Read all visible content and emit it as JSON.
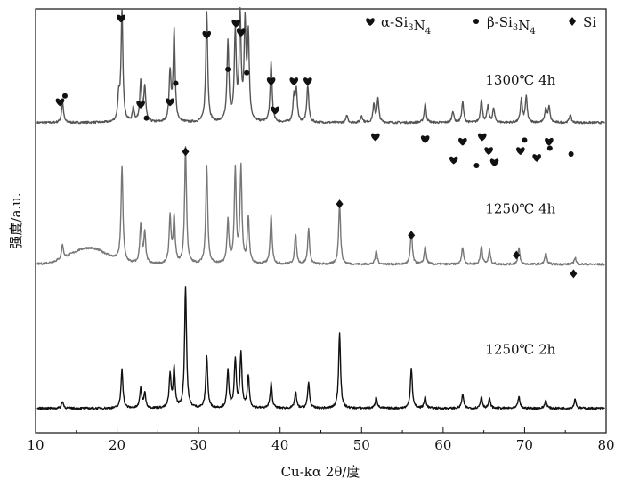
{
  "chart_data": {
    "type": "line",
    "xlabel": "Cu-kα 2θ/度",
    "ylabel": "强度/a.u.",
    "xlim": [
      10,
      80
    ],
    "xticks": [
      10,
      20,
      30,
      40,
      50,
      60,
      70,
      80
    ],
    "legend": {
      "placement": "top-right",
      "entries": [
        {
          "symbol": "heart",
          "pre": "α-Si",
          "sub1": "3",
          "mid": "N",
          "sub2": "4"
        },
        {
          "symbol": "circle",
          "pre": "β-Si",
          "sub1": "3",
          "mid": "N",
          "sub2": "4"
        },
        {
          "symbol": "diamond",
          "pre": "Si",
          "sub1": "",
          "mid": "",
          "sub2": ""
        }
      ]
    },
    "series": [
      {
        "name": "1300℃ 4h",
        "color": "#555555",
        "offset": 2.4,
        "baseline": 0.12,
        "hump": 0,
        "peaks": [
          [
            13.3,
            0.18
          ],
          [
            20.2,
            0.2
          ],
          [
            20.6,
            0.95
          ],
          [
            22.0,
            0.12
          ],
          [
            22.9,
            0.35
          ],
          [
            23.4,
            0.3
          ],
          [
            26.5,
            0.42
          ],
          [
            27.0,
            0.78
          ],
          [
            31.0,
            0.95
          ],
          [
            33.6,
            0.68
          ],
          [
            34.5,
            0.75
          ],
          [
            35.1,
            0.88
          ],
          [
            35.7,
            0.8
          ],
          [
            36.1,
            0.72
          ],
          [
            38.9,
            0.52
          ],
          [
            41.7,
            0.22
          ],
          [
            42.0,
            0.26
          ],
          [
            43.4,
            0.32
          ],
          [
            48.2,
            0.06
          ],
          [
            50.0,
            0.06
          ],
          [
            51.5,
            0.15
          ],
          [
            52.0,
            0.2
          ],
          [
            57.8,
            0.17
          ],
          [
            61.2,
            0.1
          ],
          [
            62.4,
            0.18
          ],
          [
            64.7,
            0.2
          ],
          [
            65.5,
            0.14
          ],
          [
            66.2,
            0.12
          ],
          [
            69.6,
            0.2
          ],
          [
            70.2,
            0.22
          ],
          [
            72.6,
            0.12
          ],
          [
            73.0,
            0.13
          ],
          [
            75.6,
            0.07
          ]
        ]
      },
      {
        "name": "1250℃ 4h",
        "color": "#777777",
        "offset": 1.2,
        "baseline": 0.1,
        "hump": 0.14,
        "peaks": [
          [
            13.3,
            0.12
          ],
          [
            20.6,
            0.82
          ],
          [
            22.9,
            0.34
          ],
          [
            23.4,
            0.26
          ],
          [
            26.5,
            0.4
          ],
          [
            27.0,
            0.4
          ],
          [
            28.4,
            1.0
          ],
          [
            31.0,
            0.85
          ],
          [
            33.6,
            0.37
          ],
          [
            34.5,
            0.8
          ],
          [
            35.2,
            0.82
          ],
          [
            36.1,
            0.4
          ],
          [
            38.9,
            0.42
          ],
          [
            41.9,
            0.26
          ],
          [
            43.5,
            0.3
          ],
          [
            47.3,
            0.53
          ],
          [
            51.8,
            0.12
          ],
          [
            56.1,
            0.28
          ],
          [
            57.8,
            0.16
          ],
          [
            62.4,
            0.15
          ],
          [
            64.7,
            0.16
          ],
          [
            65.7,
            0.12
          ],
          [
            69.3,
            0.14
          ],
          [
            72.6,
            0.1
          ],
          [
            76.2,
            0.06
          ]
        ]
      },
      {
        "name": "1250℃ 2h",
        "color": "#111111",
        "offset": 0,
        "baseline": 0.06,
        "hump": 0,
        "peaks": [
          [
            13.3,
            0.06
          ],
          [
            20.6,
            0.34
          ],
          [
            22.9,
            0.17
          ],
          [
            23.4,
            0.13
          ],
          [
            26.5,
            0.28
          ],
          [
            27.0,
            0.34
          ],
          [
            28.4,
            1.05
          ],
          [
            31.0,
            0.45
          ],
          [
            33.6,
            0.32
          ],
          [
            34.5,
            0.42
          ],
          [
            35.2,
            0.47
          ],
          [
            36.1,
            0.28
          ],
          [
            38.9,
            0.22
          ],
          [
            41.9,
            0.14
          ],
          [
            43.5,
            0.22
          ],
          [
            47.3,
            0.65
          ],
          [
            51.8,
            0.1
          ],
          [
            56.1,
            0.35
          ],
          [
            57.8,
            0.1
          ],
          [
            62.4,
            0.12
          ],
          [
            64.7,
            0.1
          ],
          [
            65.7,
            0.08
          ],
          [
            69.3,
            0.1
          ],
          [
            72.6,
            0.07
          ],
          [
            76.2,
            0.08
          ]
        ]
      }
    ],
    "annotations": [
      {
        "text": "1300℃ 4h",
        "x": 69.5,
        "y": 2.85
      },
      {
        "text": "1250℃ 4h",
        "x": 69.5,
        "y": 1.74
      },
      {
        "text": "1250℃ 2h",
        "x": 69.5,
        "y": 0.53
      }
    ],
    "markers": [
      {
        "symbol": "heart",
        "x": 13.0,
        "y": 2.7
      },
      {
        "symbol": "circle",
        "x": 13.6,
        "y": 2.75
      },
      {
        "symbol": "heart",
        "x": 20.5,
        "y": 3.42
      },
      {
        "symbol": "heart",
        "x": 22.9,
        "y": 2.68
      },
      {
        "symbol": "circle",
        "x": 23.6,
        "y": 2.56
      },
      {
        "symbol": "heart",
        "x": 26.5,
        "y": 2.7
      },
      {
        "symbol": "circle",
        "x": 27.2,
        "y": 2.86
      },
      {
        "symbol": "heart",
        "x": 31.0,
        "y": 3.28
      },
      {
        "symbol": "circle",
        "x": 33.6,
        "y": 2.98
      },
      {
        "symbol": "heart",
        "x": 34.6,
        "y": 3.38
      },
      {
        "symbol": "heart",
        "x": 35.2,
        "y": 3.3
      },
      {
        "symbol": "circle",
        "x": 35.9,
        "y": 2.95
      },
      {
        "symbol": "heart",
        "x": 38.9,
        "y": 2.88
      },
      {
        "symbol": "heart",
        "x": 39.4,
        "y": 2.63
      },
      {
        "symbol": "heart",
        "x": 41.7,
        "y": 2.88
      },
      {
        "symbol": "heart",
        "x": 43.4,
        "y": 2.88
      },
      {
        "symbol": "heart",
        "x": 51.7,
        "y": 2.4
      },
      {
        "symbol": "heart",
        "x": 57.8,
        "y": 2.38
      },
      {
        "symbol": "heart",
        "x": 61.3,
        "y": 2.2
      },
      {
        "symbol": "heart",
        "x": 62.4,
        "y": 2.36
      },
      {
        "symbol": "circle",
        "x": 64.1,
        "y": 2.15
      },
      {
        "symbol": "heart",
        "x": 64.8,
        "y": 2.4
      },
      {
        "symbol": "heart",
        "x": 65.6,
        "y": 2.28
      },
      {
        "symbol": "heart",
        "x": 66.3,
        "y": 2.18
      },
      {
        "symbol": "heart",
        "x": 69.5,
        "y": 2.28
      },
      {
        "symbol": "circle",
        "x": 70.0,
        "y": 2.37
      },
      {
        "symbol": "heart",
        "x": 71.5,
        "y": 2.22
      },
      {
        "symbol": "heart",
        "x": 73.0,
        "y": 2.36
      },
      {
        "symbol": "circle",
        "x": 73.1,
        "y": 2.3
      },
      {
        "symbol": "circle",
        "x": 75.7,
        "y": 2.25
      },
      {
        "symbol": "diamond",
        "x": 28.4,
        "y": 2.27
      },
      {
        "symbol": "diamond",
        "x": 47.3,
        "y": 1.82
      },
      {
        "symbol": "diamond",
        "x": 56.1,
        "y": 1.55
      },
      {
        "symbol": "diamond",
        "x": 69.0,
        "y": 1.38
      },
      {
        "symbol": "diamond",
        "x": 76.0,
        "y": 1.22
      }
    ]
  }
}
